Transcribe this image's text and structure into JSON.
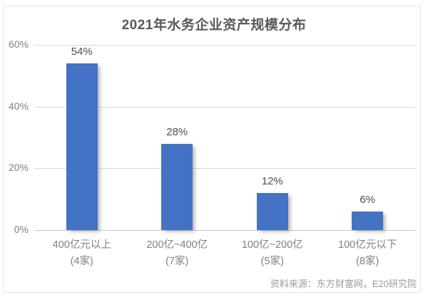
{
  "page": {
    "background": "#ffffff",
    "frame_border_color": "#e4e4e4"
  },
  "chart_data": {
    "type": "bar",
    "title": "2021年水务企业资产规模分布",
    "categories": [
      "400亿元以上",
      "200亿~400亿",
      "100亿~200亿",
      "100亿元以下"
    ],
    "category_sublabels": [
      "(4家)",
      "(7家)",
      "(5家)",
      "(8家)"
    ],
    "values": [
      54,
      28,
      12,
      6
    ],
    "value_labels": [
      "54%",
      "28%",
      "12%",
      "6%"
    ],
    "ylabel": "",
    "xlabel": "",
    "ylim": [
      0,
      60
    ],
    "y_ticks": [
      0,
      20,
      40,
      60
    ],
    "y_tick_labels": [
      "0%",
      "20%",
      "40%",
      "60%"
    ],
    "grid": true,
    "legend": "none",
    "bar_color": "#4472c4",
    "grid_color": "#d9d9d9",
    "title_color": "#595959",
    "axis_text_color": "#818181",
    "source": "资料来源：东方财富网，E20研究院"
  }
}
